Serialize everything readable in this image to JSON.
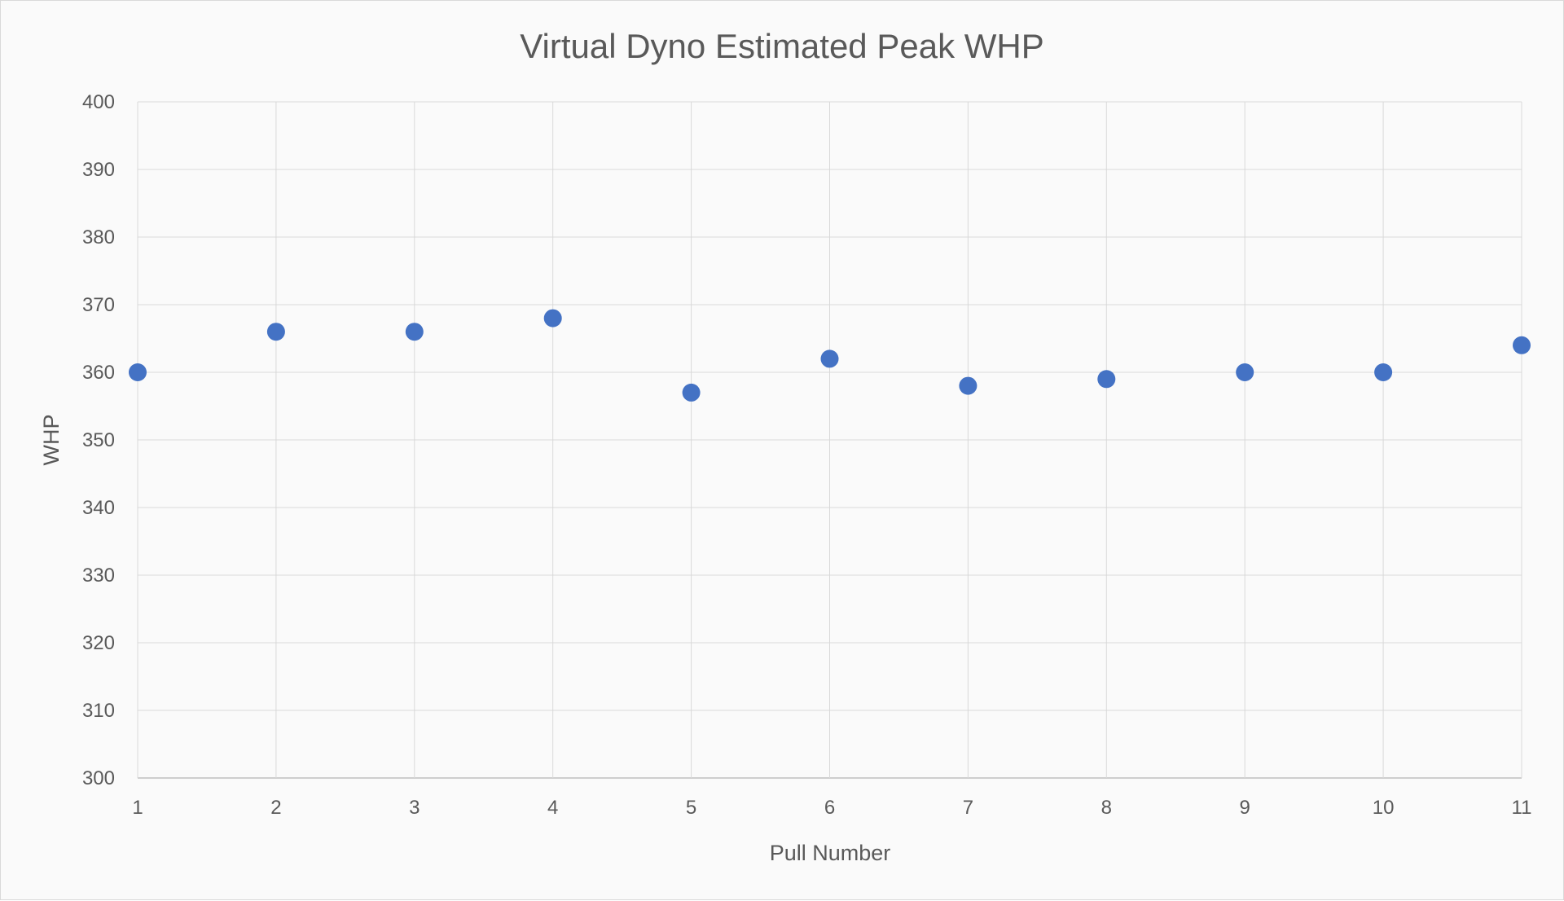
{
  "chart_data": {
    "type": "scatter",
    "title": "Virtual Dyno Estimated Peak WHP",
    "xlabel": "Pull Number",
    "ylabel": "WHP",
    "x": [
      1,
      2,
      3,
      4,
      5,
      6,
      7,
      8,
      9,
      10,
      11
    ],
    "y": [
      360,
      366,
      366,
      368,
      357,
      362,
      358,
      359,
      360,
      360,
      364
    ],
    "xlim": [
      1,
      11
    ],
    "ylim": [
      300,
      400
    ],
    "xticks": [
      "1",
      "2",
      "3",
      "4",
      "5",
      "6",
      "7",
      "8",
      "9",
      "10",
      "11"
    ],
    "yticks": [
      "300",
      "310",
      "320",
      "330",
      "340",
      "350",
      "360",
      "370",
      "380",
      "390",
      "400"
    ],
    "grid": true,
    "legend": "none",
    "marker_color": "#4472C4"
  }
}
